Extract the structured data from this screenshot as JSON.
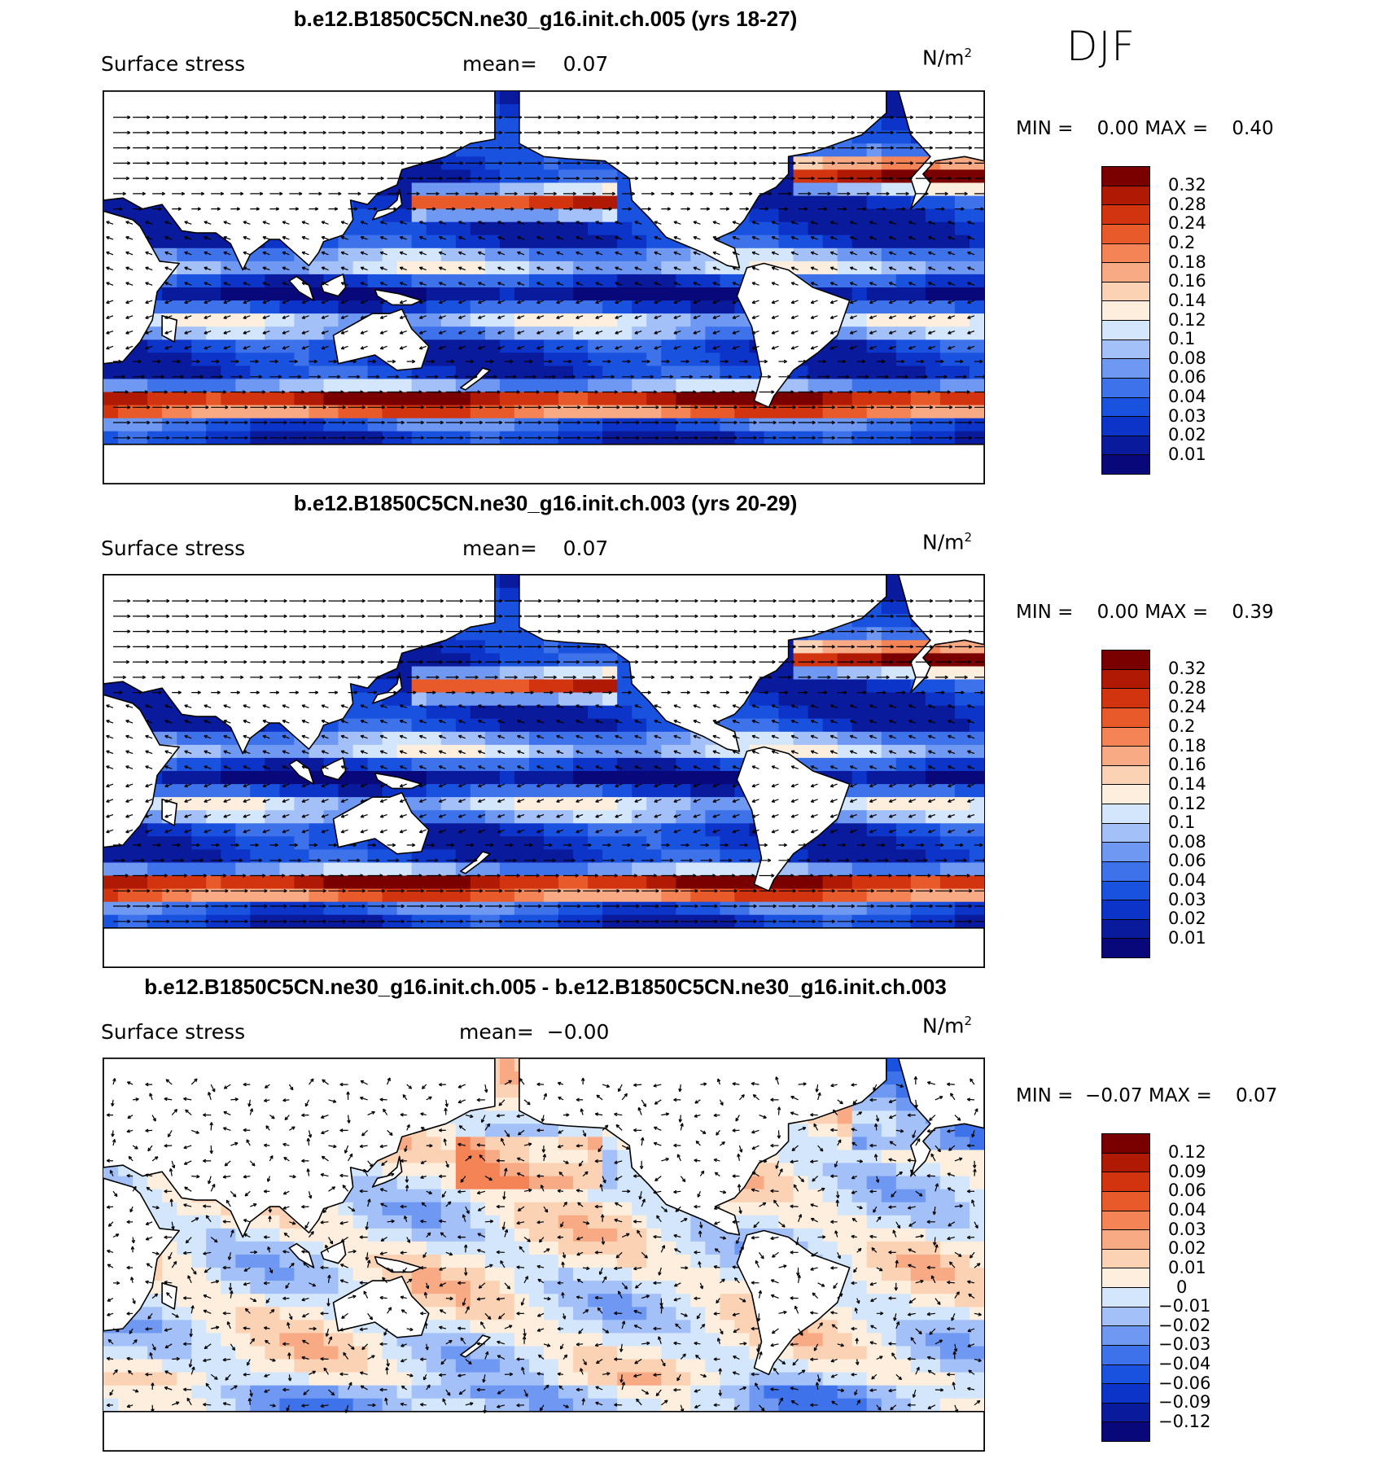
{
  "season": "DJF",
  "panels": [
    {
      "title": "b.e12.B1850C5CN.ne30_g16.init.ch.005 (yrs 18-27)",
      "left_label": "Surface stress",
      "mean_label": "mean=",
      "mean_value": "0.07",
      "units": "N/m",
      "units_exp": "2",
      "min_label": "MIN =",
      "min_value": "0.00",
      "max_label": "MAX =",
      "max_value": "0.40",
      "colorbar_colors": [
        "#08087a",
        "#0a1a9c",
        "#0d34c8",
        "#1a52e0",
        "#3d72ea",
        "#6e98f2",
        "#a3c0f8",
        "#d3e6fc",
        "#fdeedd",
        "#fcd2b5",
        "#f8aa84",
        "#f48456",
        "#e85a2a",
        "#d1340f",
        "#b01a05",
        "#7a0000"
      ],
      "colorbar_labels": [
        "0.32",
        "0.28",
        "0.24",
        "0.2",
        "0.18",
        "0.16",
        "0.14",
        "0.12",
        "0.1",
        "0.08",
        "0.06",
        "0.04",
        "0.03",
        "0.02",
        "0.01"
      ]
    },
    {
      "title": "b.e12.B1850C5CN.ne30_g16.init.ch.003 (yrs 20-29)",
      "left_label": "Surface stress",
      "mean_label": "mean=",
      "mean_value": "0.07",
      "units": "N/m",
      "units_exp": "2",
      "min_label": "MIN =",
      "min_value": "0.00",
      "max_label": "MAX =",
      "max_value": "0.39",
      "colorbar_colors": [
        "#08087a",
        "#0a1a9c",
        "#0d34c8",
        "#1a52e0",
        "#3d72ea",
        "#6e98f2",
        "#a3c0f8",
        "#d3e6fc",
        "#fdeedd",
        "#fcd2b5",
        "#f8aa84",
        "#f48456",
        "#e85a2a",
        "#d1340f",
        "#b01a05",
        "#7a0000"
      ],
      "colorbar_labels": [
        "0.32",
        "0.28",
        "0.24",
        "0.2",
        "0.18",
        "0.16",
        "0.14",
        "0.12",
        "0.1",
        "0.08",
        "0.06",
        "0.04",
        "0.03",
        "0.02",
        "0.01"
      ]
    },
    {
      "title": "b.e12.B1850C5CN.ne30_g16.init.ch.005 - b.e12.B1850C5CN.ne30_g16.init.ch.003",
      "left_label": "Surface stress",
      "mean_label": "mean=",
      "mean_value": "−0.00",
      "units": "N/m",
      "units_exp": "2",
      "min_label": "MIN =",
      "min_value": "−0.07",
      "max_label": "MAX =",
      "max_value": "0.07",
      "colorbar_colors": [
        "#08087a",
        "#0a1a9c",
        "#0d34c8",
        "#1a52e0",
        "#3d72ea",
        "#6e98f2",
        "#a3c0f8",
        "#d3e6fc",
        "#fdeedd",
        "#fcd2b5",
        "#f8aa84",
        "#f48456",
        "#e85a2a",
        "#d1340f",
        "#b01a05",
        "#7a0000"
      ],
      "colorbar_labels": [
        "0.12",
        "0.09",
        "0.06",
        "0.04",
        "0.03",
        "0.02",
        "0.01",
        "0",
        "−0.01",
        "−0.02",
        "−0.03",
        "−0.04",
        "−0.06",
        "−0.09",
        "−0.12"
      ]
    }
  ],
  "colors": {
    "land": "#ffffff",
    "coastline": "#000000",
    "arrow": "#000000"
  }
}
